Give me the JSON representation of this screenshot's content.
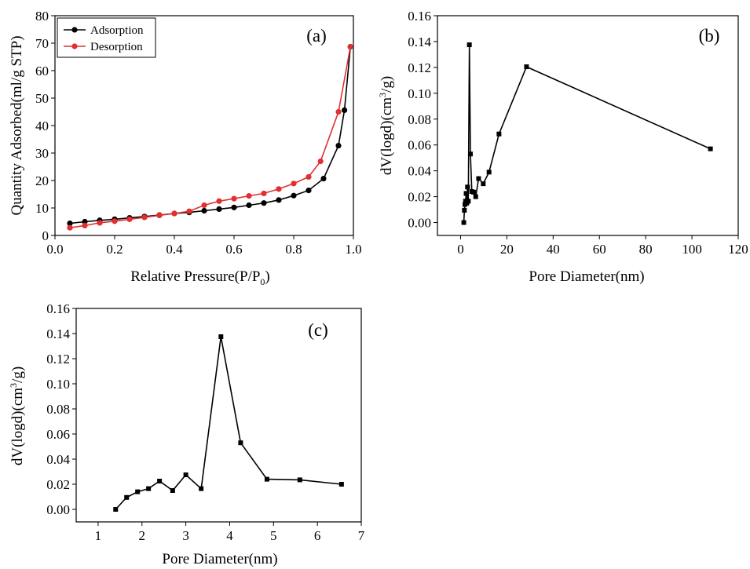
{
  "chart_data": [
    {
      "type": "line",
      "panel_label": "(a)",
      "xlabel": "Relative Pressure(P/P0)",
      "xlabel_main": "Relative Pressure(P/P",
      "xlabel_sub": "0",
      "xlabel_close": ")",
      "ylabel": "Quantity Adsorbed(ml/g STP)",
      "xlim": [
        0.0,
        1.0
      ],
      "ylim": [
        0,
        80
      ],
      "xticks": [
        "0.0",
        "0.2",
        "0.4",
        "0.6",
        "0.8",
        "1.0"
      ],
      "yticks": [
        "0",
        "10",
        "20",
        "30",
        "40",
        "50",
        "60",
        "70",
        "80"
      ],
      "legend_position": "top-left",
      "series": [
        {
          "name": "Adsorption",
          "color": "#000000",
          "marker": "circle",
          "x": [
            0.05,
            0.1,
            0.15,
            0.2,
            0.25,
            0.3,
            0.35,
            0.4,
            0.45,
            0.5,
            0.55,
            0.6,
            0.65,
            0.7,
            0.75,
            0.8,
            0.85,
            0.9,
            0.95,
            0.97,
            0.99
          ],
          "y": [
            4.4,
            5.0,
            5.5,
            5.9,
            6.4,
            6.9,
            7.4,
            8.0,
            8.4,
            9.0,
            9.6,
            10.2,
            11.0,
            11.8,
            12.9,
            14.5,
            16.4,
            20.7,
            32.7,
            45.6,
            68.7
          ]
        },
        {
          "name": "Desorption",
          "color": "#e03030",
          "marker": "circle",
          "x": [
            0.05,
            0.1,
            0.15,
            0.2,
            0.25,
            0.3,
            0.35,
            0.4,
            0.45,
            0.5,
            0.55,
            0.6,
            0.65,
            0.7,
            0.75,
            0.8,
            0.85,
            0.89,
            0.95,
            0.99
          ],
          "y": [
            2.8,
            3.6,
            4.6,
            5.2,
            5.9,
            6.6,
            7.3,
            8.0,
            8.8,
            11.0,
            12.5,
            13.4,
            14.4,
            15.3,
            16.9,
            18.9,
            21.3,
            27.0,
            45.0,
            68.7
          ]
        }
      ]
    },
    {
      "type": "line",
      "panel_label": "(b)",
      "xlabel": "Pore Diameter(nm)",
      "ylabel": "dV(logd)(cm3/g)",
      "ylabel_pre": "dV(logd)(cm",
      "ylabel_sup": "3",
      "ylabel_post": "/g)",
      "xlim": [
        -10,
        120
      ],
      "ylim": [
        -0.01,
        0.16
      ],
      "xticks": [
        "0",
        "20",
        "40",
        "60",
        "80",
        "100",
        "120"
      ],
      "yticks": [
        "0.00",
        "0.02",
        "0.04",
        "0.06",
        "0.08",
        "0.10",
        "0.12",
        "0.14",
        "0.16"
      ],
      "series": [
        {
          "color": "#000000",
          "marker": "square",
          "x": [
            1.4,
            1.65,
            1.9,
            2.15,
            2.4,
            2.7,
            3.0,
            3.35,
            3.8,
            4.25,
            4.85,
            5.6,
            6.55,
            7.8,
            9.8,
            12.3,
            16.6,
            28.5,
            108.0
          ],
          "y": [
            0.0,
            0.0095,
            0.014,
            0.0165,
            0.0225,
            0.015,
            0.0275,
            0.0165,
            0.1375,
            0.053,
            0.024,
            0.0235,
            0.02,
            0.034,
            0.03,
            0.039,
            0.0685,
            0.1205,
            0.057
          ]
        }
      ]
    },
    {
      "type": "line",
      "panel_label": "(c)",
      "xlabel": "Pore Diameter(nm)",
      "ylabel": "dV(logd)(cm3/g)",
      "ylabel_pre": "dV(logd)(cm",
      "ylabel_sup": "3",
      "ylabel_post": "/g)",
      "xlim": [
        0.5,
        7.0
      ],
      "ylim": [
        -0.01,
        0.16
      ],
      "xticks": [
        "1",
        "2",
        "3",
        "4",
        "5",
        "6",
        "7"
      ],
      "yticks": [
        "0.00",
        "0.02",
        "0.04",
        "0.06",
        "0.08",
        "0.10",
        "0.12",
        "0.14",
        "0.16"
      ],
      "series": [
        {
          "color": "#000000",
          "marker": "square",
          "x": [
            1.4,
            1.65,
            1.9,
            2.15,
            2.4,
            2.7,
            3.0,
            3.35,
            3.8,
            4.25,
            4.85,
            5.6,
            6.55
          ],
          "y": [
            0.0,
            0.0095,
            0.014,
            0.0165,
            0.0225,
            0.015,
            0.0275,
            0.0165,
            0.1375,
            0.053,
            0.024,
            0.0235,
            0.02
          ]
        }
      ]
    }
  ]
}
